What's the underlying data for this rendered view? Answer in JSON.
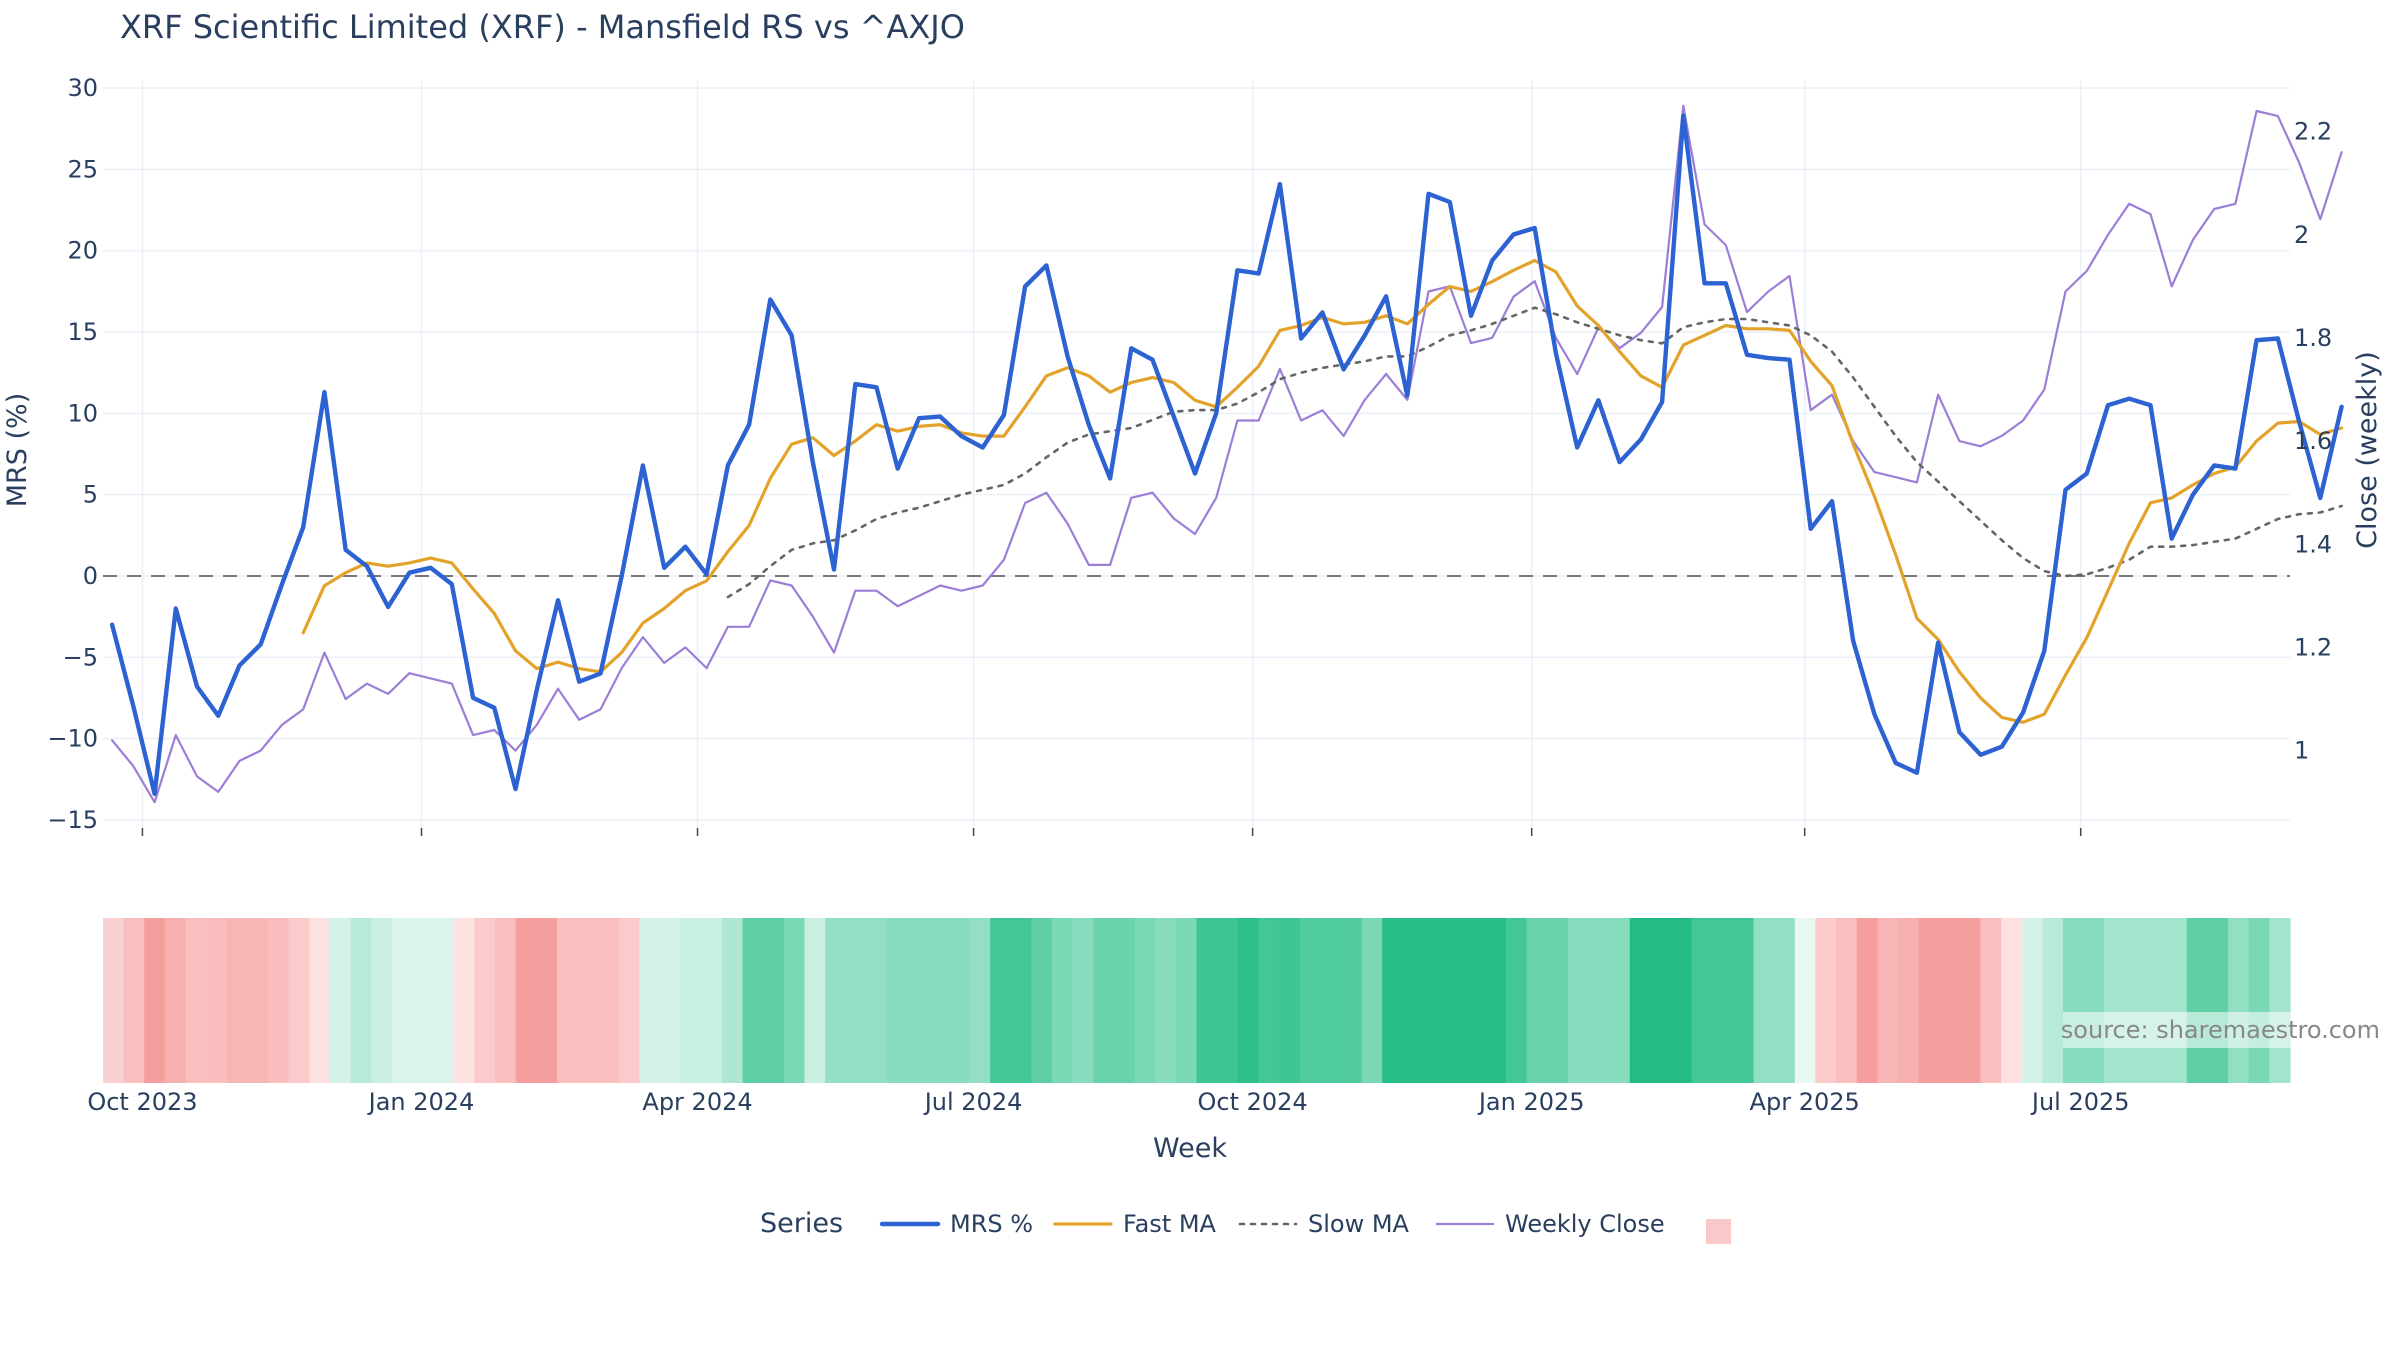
{
  "chart_data": {
    "type": "line",
    "title": "XRF Scientific Limited (XRF) - Mansfield RS vs ^AXJO",
    "xlabel": "Week",
    "ylabel_left": "MRS (%)",
    "ylabel_right": "Close (weekly)",
    "ylim_left": [
      -15.5,
      30.5
    ],
    "ylim_right": [
      0.85,
      2.3
    ],
    "y_ticks_left": [
      "30",
      "25",
      "20",
      "15",
      "10",
      "5",
      "0",
      "−5",
      "−10",
      "−15"
    ],
    "y_ticks_right": [
      "2.2",
      "2",
      "1.8",
      "1.6",
      "1.4",
      "1.2",
      "1"
    ],
    "x_ticks": [
      "Oct 2023",
      "Jan 2024",
      "Apr 2024",
      "Jul 2024",
      "Oct 2024",
      "Jan 2025",
      "Apr 2025",
      "Jul 2025"
    ],
    "x_start": "2023-09-18",
    "x_end": "2025-09-08",
    "zero_line": 0,
    "grid": true,
    "legend": {
      "title": "Series",
      "placement": "bottom-center",
      "items": [
        "MRS %",
        "Fast MA",
        "Slow MA",
        "Weekly Close"
      ]
    },
    "series": [
      {
        "name": "MRS %",
        "axis": "left",
        "color": "#2c62d2",
        "values": [
          -3.0,
          -8.0,
          -13.4,
          -2.0,
          -6.8,
          -8.6,
          -5.5,
          -4.2,
          -0.5,
          3.0,
          11.3,
          1.6,
          0.6,
          -1.9,
          0.2,
          0.5,
          -0.5,
          -7.5,
          -8.1,
          -13.1,
          -7.0,
          -1.5,
          -6.5,
          -6.0,
          0.0,
          6.8,
          0.5,
          1.8,
          0.1,
          6.8,
          9.3,
          17.0,
          14.8,
          7.0,
          0.4,
          11.8,
          11.6,
          6.6,
          9.7,
          9.8,
          8.6,
          7.9,
          9.9,
          17.8,
          19.1,
          13.5,
          9.3,
          6.0,
          14.0,
          13.3,
          9.8,
          6.3,
          10.0,
          18.8,
          18.6,
          24.1,
          14.6,
          16.2,
          12.7,
          14.8,
          17.2,
          11.1,
          23.5,
          23.0,
          16.0,
          19.4,
          21.0,
          21.4,
          13.7,
          7.9,
          10.8,
          7.0,
          8.4,
          10.7,
          28.3,
          18.0,
          18.0,
          13.6,
          13.4,
          13.3,
          2.9,
          4.6,
          -4.0,
          -8.5,
          -11.5,
          -12.1,
          -4.1,
          -9.6,
          -11.0,
          -10.5,
          -8.4,
          -4.6,
          5.3,
          6.3,
          10.5,
          10.9,
          10.5,
          2.3,
          5.0,
          6.8,
          6.6,
          14.5,
          14.6,
          9.5,
          4.8,
          10.4
        ]
      },
      {
        "name": "Fast MA",
        "axis": "left",
        "color": "#e3a32b",
        "values": [
          null,
          null,
          null,
          null,
          null,
          null,
          null,
          null,
          null,
          -3.5,
          -0.6,
          0.2,
          0.8,
          0.6,
          0.8,
          1.1,
          0.8,
          -0.8,
          -2.3,
          -4.6,
          -5.7,
          -5.3,
          -5.7,
          -5.9,
          -4.7,
          -2.9,
          -2.0,
          -0.9,
          -0.3,
          1.5,
          3.1,
          6.0,
          8.1,
          8.5,
          7.4,
          8.3,
          9.3,
          8.9,
          9.2,
          9.3,
          8.8,
          8.6,
          8.6,
          10.4,
          12.3,
          12.8,
          12.3,
          11.3,
          11.9,
          12.2,
          11.9,
          10.8,
          10.4,
          11.6,
          12.9,
          15.1,
          15.4,
          15.9,
          15.5,
          15.6,
          16.0,
          15.5,
          16.7,
          17.8,
          17.5,
          18.1,
          18.8,
          19.4,
          18.7,
          16.6,
          15.4,
          13.8,
          12.3,
          11.6,
          14.2,
          14.8,
          15.4,
          15.2,
          15.2,
          15.1,
          13.2,
          11.7,
          8.1,
          4.9,
          1.3,
          -2.6,
          -3.9,
          -5.9,
          -7.5,
          -8.7,
          -9.0,
          -8.5,
          -6.1,
          -3.8,
          -0.9,
          2.0,
          4.5,
          4.8,
          5.6,
          6.3,
          6.7,
          8.3,
          9.4,
          9.5,
          8.7,
          9.1
        ]
      },
      {
        "name": "Slow MA",
        "axis": "left",
        "color": "#666666",
        "dash": "dot",
        "values": [
          null,
          null,
          null,
          null,
          null,
          null,
          null,
          null,
          null,
          null,
          null,
          null,
          null,
          null,
          null,
          null,
          null,
          null,
          null,
          null,
          null,
          null,
          null,
          null,
          null,
          null,
          null,
          null,
          null,
          -1.3,
          -0.5,
          0.6,
          1.6,
          2.0,
          2.2,
          2.8,
          3.5,
          3.9,
          4.2,
          4.6,
          5.0,
          5.3,
          5.6,
          6.3,
          7.3,
          8.2,
          8.7,
          8.9,
          9.1,
          9.6,
          10.1,
          10.2,
          10.2,
          10.6,
          11.3,
          12.1,
          12.5,
          12.8,
          13.0,
          13.2,
          13.5,
          13.5,
          14.1,
          14.8,
          15.1,
          15.5,
          16.0,
          16.5,
          16.1,
          15.6,
          15.2,
          14.8,
          14.5,
          14.3,
          15.3,
          15.6,
          15.8,
          15.8,
          15.6,
          15.4,
          14.8,
          13.8,
          12.2,
          10.4,
          8.6,
          7.0,
          5.8,
          4.6,
          3.4,
          2.2,
          1.1,
          0.3,
          0.0,
          0.1,
          0.5,
          1.0,
          1.8,
          1.8,
          1.9,
          2.1,
          2.3,
          2.9,
          3.5,
          3.8,
          3.9,
          4.3
        ]
      },
      {
        "name": "Weekly Close",
        "axis": "right",
        "color": "#9c7ed6",
        "values": [
          1.02,
          0.97,
          0.9,
          1.03,
          0.95,
          0.92,
          0.98,
          1.0,
          1.05,
          1.08,
          1.19,
          1.1,
          1.13,
          1.11,
          1.15,
          1.14,
          1.13,
          1.03,
          1.04,
          1.0,
          1.05,
          1.12,
          1.06,
          1.08,
          1.16,
          1.22,
          1.17,
          1.2,
          1.16,
          1.24,
          1.24,
          1.33,
          1.32,
          1.26,
          1.19,
          1.31,
          1.31,
          1.28,
          1.3,
          1.32,
          1.31,
          1.32,
          1.37,
          1.48,
          1.5,
          1.44,
          1.36,
          1.36,
          1.49,
          1.5,
          1.45,
          1.42,
          1.49,
          1.64,
          1.64,
          1.74,
          1.64,
          1.66,
          1.61,
          1.68,
          1.73,
          1.68,
          1.89,
          1.9,
          1.79,
          1.8,
          1.88,
          1.91,
          1.8,
          1.73,
          1.82,
          1.78,
          1.81,
          1.86,
          2.25,
          2.02,
          1.98,
          1.85,
          1.89,
          1.92,
          1.66,
          1.69,
          1.6,
          1.54,
          1.53,
          1.52,
          1.69,
          1.6,
          1.59,
          1.61,
          1.64,
          1.7,
          1.89,
          1.93,
          2.0,
          2.06,
          2.04,
          1.9,
          1.99,
          2.05,
          2.06,
          2.24,
          2.23,
          2.14,
          2.03,
          2.16
        ]
      }
    ],
    "regime_strip": {
      "type": "heatmap",
      "colors": [
        "#fad1d1",
        "#f9bfbf",
        "#f59e9e",
        "#f7b0b0",
        "#f9bebe",
        "#f9bdbd",
        "#f8b5b5",
        "#f8b5b5",
        "#f9bdbd",
        "#fbcaca",
        "#fde0e0",
        "#d3f1e6",
        "#b8ead8",
        "#c9efe1",
        "#dcf5ec",
        "#dcf5ec",
        "#dcf5ec",
        "#fde2e2",
        "#fbcaca",
        "#f9bebe",
        "#f59e9e",
        "#f59e9e",
        "#f9bebe",
        "#f9bebe",
        "#f9bebe",
        "#fbcaca",
        "#d3f1e6",
        "#d3f1e6",
        "#c9efe1",
        "#c9efe1",
        "#ade6d1",
        "#5fd0a6",
        "#5fd0a6",
        "#7ad8b5",
        "#c9efe1",
        "#92dfc3",
        "#92dfc3",
        "#92dfc3",
        "#88dcbe",
        "#88dcbe",
        "#88dcbe",
        "#88dcbe",
        "#92dfc3",
        "#42c795",
        "#42c795",
        "#5fd0a6",
        "#7ad8b5",
        "#88dcbe",
        "#6bd3ac",
        "#6bd3ac",
        "#7ad8b5",
        "#88dcbe",
        "#7ad8b5",
        "#3ec692",
        "#3ec692",
        "#2cc088",
        "#42c795",
        "#3ec692",
        "#4fcb9c",
        "#4fcb9c",
        "#4fcb9c",
        "#7ad8b5",
        "#28bf86",
        "#28bf86",
        "#28bf86",
        "#28bf86",
        "#28bf86",
        "#28bf86",
        "#42c795",
        "#6bd3ac",
        "#6bd3ac",
        "#88dcbe",
        "#88dcbe",
        "#88dcbe",
        "#23bd83",
        "#23bd83",
        "#23bd83",
        "#42c795",
        "#42c795",
        "#42c795",
        "#92dfc3",
        "#92dfc3",
        "#e9f8f2",
        "#fbcaca",
        "#f9bebe",
        "#f59e9e",
        "#f8b5b5",
        "#f7b0b0",
        "#f59e9e",
        "#f59e9e",
        "#f59e9e",
        "#f9bebe",
        "#fde0e0",
        "#d3f1e6",
        "#b8ead8",
        "#88dcbe",
        "#88dcbe",
        "#a2e4cc",
        "#a2e4cc",
        "#a2e4cc",
        "#a2e4cc",
        "#5fd0a6",
        "#5fd0a6",
        "#92dfc3",
        "#7ad8b5",
        "#a2e4cc"
      ]
    },
    "source": "source: sharemaestro.com"
  }
}
